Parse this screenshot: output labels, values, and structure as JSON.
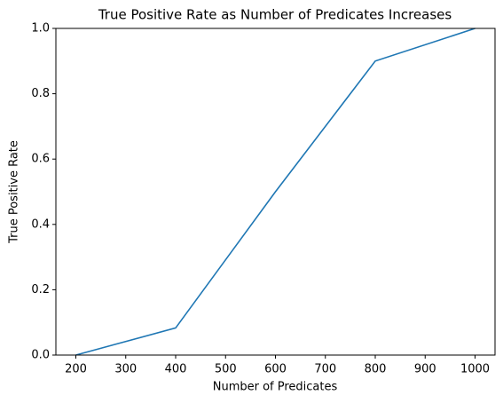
{
  "chart_data": {
    "type": "line",
    "title": "True Positive Rate as Number of Predicates Increases",
    "x_label": "Number of Predicates",
    "y_label": "True Positive Rate",
    "x": [
      200,
      400,
      600,
      800,
      1000
    ],
    "series": [
      {
        "color": "#1f77b4",
        "values": [
          0,
          0.083,
          0.5,
          0.9,
          1.0
        ]
      }
    ],
    "xlim": [
      160,
      1040
    ],
    "xticks": [
      200,
      300,
      400,
      500,
      600,
      700,
      800,
      900,
      1000
    ],
    "ylim": [
      0,
      1
    ],
    "yticks": [
      {
        "value": 0,
        "label": "0.0"
      },
      {
        "value": 0.2,
        "label": "0.2"
      },
      {
        "value": 0.4,
        "label": "0.4"
      },
      {
        "value": 0.6,
        "label": "0.6"
      },
      {
        "value": 0.8,
        "label": "0.8"
      },
      {
        "value": 1,
        "label": "1.0"
      }
    ]
  }
}
